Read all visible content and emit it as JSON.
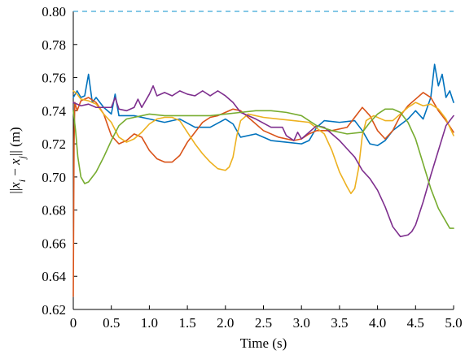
{
  "chart_data": {
    "type": "line",
    "xlabel": "Time (s)",
    "ylabel": "||x_i - x_j|| (m)",
    "xlim": [
      0,
      5.0
    ],
    "ylim": [
      0.62,
      0.8
    ],
    "x_ticks": [
      "0",
      "0.5",
      "1.0",
      "1.5",
      "2.0",
      "2.5",
      "3.0",
      "3.5",
      "4.0",
      "4.5",
      "5.0"
    ],
    "y_ticks": [
      "0.62",
      "0.64",
      "0.66",
      "0.68",
      "0.70",
      "0.72",
      "0.74",
      "0.76",
      "0.78",
      "0.80"
    ],
    "reference_line": {
      "y": 0.8,
      "style": "dashed",
      "color": "#3ca6d8"
    },
    "grid": false,
    "series": [
      {
        "color": "#0072bd",
        "points": [
          [
            0.0,
            0.748
          ],
          [
            0.05,
            0.752
          ],
          [
            0.1,
            0.748
          ],
          [
            0.15,
            0.749
          ],
          [
            0.2,
            0.762
          ],
          [
            0.25,
            0.745
          ],
          [
            0.3,
            0.748
          ],
          [
            0.4,
            0.742
          ],
          [
            0.5,
            0.738
          ],
          [
            0.55,
            0.75
          ],
          [
            0.6,
            0.737
          ],
          [
            0.8,
            0.737
          ],
          [
            1.0,
            0.735
          ],
          [
            1.2,
            0.733
          ],
          [
            1.4,
            0.735
          ],
          [
            1.6,
            0.73
          ],
          [
            1.8,
            0.73
          ],
          [
            2.0,
            0.735
          ],
          [
            2.1,
            0.732
          ],
          [
            2.2,
            0.724
          ],
          [
            2.4,
            0.726
          ],
          [
            2.6,
            0.722
          ],
          [
            2.8,
            0.721
          ],
          [
            3.0,
            0.72
          ],
          [
            3.1,
            0.722
          ],
          [
            3.2,
            0.73
          ],
          [
            3.3,
            0.734
          ],
          [
            3.5,
            0.733
          ],
          [
            3.7,
            0.734
          ],
          [
            3.8,
            0.728
          ],
          [
            3.9,
            0.72
          ],
          [
            4.0,
            0.719
          ],
          [
            4.1,
            0.722
          ],
          [
            4.2,
            0.728
          ],
          [
            4.4,
            0.735
          ],
          [
            4.5,
            0.74
          ],
          [
            4.6,
            0.735
          ],
          [
            4.7,
            0.748
          ],
          [
            4.75,
            0.768
          ],
          [
            4.8,
            0.755
          ],
          [
            4.85,
            0.762
          ],
          [
            4.9,
            0.748
          ],
          [
            4.95,
            0.752
          ],
          [
            5.0,
            0.745
          ]
        ]
      },
      {
        "color": "#d95319",
        "points": [
          [
            0.0,
            0.628
          ],
          [
            0.01,
            0.72
          ],
          [
            0.02,
            0.745
          ],
          [
            0.05,
            0.74
          ],
          [
            0.1,
            0.746
          ],
          [
            0.2,
            0.748
          ],
          [
            0.3,
            0.745
          ],
          [
            0.4,
            0.738
          ],
          [
            0.5,
            0.725
          ],
          [
            0.6,
            0.72
          ],
          [
            0.7,
            0.722
          ],
          [
            0.8,
            0.726
          ],
          [
            0.9,
            0.724
          ],
          [
            1.0,
            0.716
          ],
          [
            1.1,
            0.711
          ],
          [
            1.2,
            0.709
          ],
          [
            1.3,
            0.709
          ],
          [
            1.4,
            0.713
          ],
          [
            1.5,
            0.721
          ],
          [
            1.6,
            0.727
          ],
          [
            1.7,
            0.733
          ],
          [
            1.8,
            0.736
          ],
          [
            1.9,
            0.737
          ],
          [
            2.0,
            0.739
          ],
          [
            2.1,
            0.741
          ],
          [
            2.2,
            0.74
          ],
          [
            2.3,
            0.736
          ],
          [
            2.5,
            0.728
          ],
          [
            2.7,
            0.724
          ],
          [
            2.9,
            0.722
          ],
          [
            3.0,
            0.723
          ],
          [
            3.1,
            0.726
          ],
          [
            3.2,
            0.728
          ],
          [
            3.4,
            0.728
          ],
          [
            3.6,
            0.73
          ],
          [
            3.7,
            0.736
          ],
          [
            3.8,
            0.742
          ],
          [
            3.9,
            0.737
          ],
          [
            4.0,
            0.728
          ],
          [
            4.1,
            0.723
          ],
          [
            4.2,
            0.728
          ],
          [
            4.3,
            0.737
          ],
          [
            4.4,
            0.743
          ],
          [
            4.5,
            0.747
          ],
          [
            4.6,
            0.751
          ],
          [
            4.7,
            0.748
          ],
          [
            4.8,
            0.74
          ],
          [
            4.9,
            0.734
          ],
          [
            5.0,
            0.727
          ]
        ]
      },
      {
        "color": "#edb120",
        "points": [
          [
            0.0,
            0.752
          ],
          [
            0.05,
            0.75
          ],
          [
            0.1,
            0.747
          ],
          [
            0.2,
            0.746
          ],
          [
            0.3,
            0.744
          ],
          [
            0.4,
            0.738
          ],
          [
            0.5,
            0.733
          ],
          [
            0.6,
            0.724
          ],
          [
            0.7,
            0.721
          ],
          [
            0.8,
            0.723
          ],
          [
            0.9,
            0.727
          ],
          [
            1.0,
            0.732
          ],
          [
            1.1,
            0.735
          ],
          [
            1.2,
            0.736
          ],
          [
            1.3,
            0.736
          ],
          [
            1.4,
            0.734
          ],
          [
            1.5,
            0.727
          ],
          [
            1.6,
            0.72
          ],
          [
            1.7,
            0.714
          ],
          [
            1.8,
            0.709
          ],
          [
            1.9,
            0.705
          ],
          [
            2.0,
            0.704
          ],
          [
            2.05,
            0.706
          ],
          [
            2.1,
            0.712
          ],
          [
            2.15,
            0.725
          ],
          [
            2.2,
            0.734
          ],
          [
            2.3,
            0.738
          ],
          [
            2.5,
            0.736
          ],
          [
            2.7,
            0.735
          ],
          [
            2.9,
            0.734
          ],
          [
            3.1,
            0.733
          ],
          [
            3.3,
            0.726
          ],
          [
            3.4,
            0.716
          ],
          [
            3.5,
            0.703
          ],
          [
            3.6,
            0.694
          ],
          [
            3.65,
            0.69
          ],
          [
            3.7,
            0.693
          ],
          [
            3.75,
            0.705
          ],
          [
            3.8,
            0.725
          ],
          [
            3.85,
            0.734
          ],
          [
            3.95,
            0.737
          ],
          [
            4.1,
            0.734
          ],
          [
            4.2,
            0.734
          ],
          [
            4.3,
            0.738
          ],
          [
            4.4,
            0.742
          ],
          [
            4.5,
            0.745
          ],
          [
            4.6,
            0.743
          ],
          [
            4.7,
            0.744
          ],
          [
            4.8,
            0.741
          ],
          [
            4.9,
            0.735
          ],
          [
            5.0,
            0.725
          ]
        ]
      },
      {
        "color": "#7e2f8e",
        "points": [
          [
            0.0,
            0.745
          ],
          [
            0.1,
            0.743
          ],
          [
            0.2,
            0.744
          ],
          [
            0.3,
            0.742
          ],
          [
            0.5,
            0.742
          ],
          [
            0.55,
            0.748
          ],
          [
            0.6,
            0.741
          ],
          [
            0.7,
            0.74
          ],
          [
            0.8,
            0.742
          ],
          [
            0.85,
            0.747
          ],
          [
            0.9,
            0.742
          ],
          [
            1.0,
            0.75
          ],
          [
            1.05,
            0.755
          ],
          [
            1.1,
            0.749
          ],
          [
            1.2,
            0.751
          ],
          [
            1.3,
            0.749
          ],
          [
            1.4,
            0.752
          ],
          [
            1.5,
            0.75
          ],
          [
            1.6,
            0.749
          ],
          [
            1.7,
            0.752
          ],
          [
            1.8,
            0.749
          ],
          [
            1.9,
            0.752
          ],
          [
            2.0,
            0.749
          ],
          [
            2.1,
            0.745
          ],
          [
            2.2,
            0.739
          ],
          [
            2.4,
            0.735
          ],
          [
            2.6,
            0.73
          ],
          [
            2.75,
            0.73
          ],
          [
            2.8,
            0.725
          ],
          [
            2.9,
            0.722
          ],
          [
            2.95,
            0.727
          ],
          [
            3.0,
            0.723
          ],
          [
            3.1,
            0.727
          ],
          [
            3.2,
            0.731
          ],
          [
            3.3,
            0.73
          ],
          [
            3.4,
            0.726
          ],
          [
            3.5,
            0.722
          ],
          [
            3.6,
            0.717
          ],
          [
            3.7,
            0.712
          ],
          [
            3.8,
            0.704
          ],
          [
            3.9,
            0.699
          ],
          [
            4.0,
            0.692
          ],
          [
            4.1,
            0.682
          ],
          [
            4.2,
            0.67
          ],
          [
            4.3,
            0.664
          ],
          [
            4.4,
            0.665
          ],
          [
            4.45,
            0.667
          ],
          [
            4.5,
            0.671
          ],
          [
            4.6,
            0.685
          ],
          [
            4.7,
            0.701
          ],
          [
            4.8,
            0.716
          ],
          [
            4.9,
            0.731
          ],
          [
            5.0,
            0.737
          ]
        ]
      },
      {
        "color": "#77ac30",
        "points": [
          [
            0.0,
            0.74
          ],
          [
            0.03,
            0.728
          ],
          [
            0.06,
            0.712
          ],
          [
            0.1,
            0.7
          ],
          [
            0.15,
            0.696
          ],
          [
            0.2,
            0.697
          ],
          [
            0.3,
            0.703
          ],
          [
            0.4,
            0.712
          ],
          [
            0.5,
            0.722
          ],
          [
            0.6,
            0.731
          ],
          [
            0.7,
            0.735
          ],
          [
            0.8,
            0.736
          ],
          [
            1.0,
            0.738
          ],
          [
            1.2,
            0.737
          ],
          [
            1.4,
            0.737
          ],
          [
            1.6,
            0.737
          ],
          [
            1.8,
            0.737
          ],
          [
            2.0,
            0.738
          ],
          [
            2.2,
            0.739
          ],
          [
            2.4,
            0.74
          ],
          [
            2.6,
            0.74
          ],
          [
            2.8,
            0.739
          ],
          [
            3.0,
            0.737
          ],
          [
            3.2,
            0.731
          ],
          [
            3.4,
            0.728
          ],
          [
            3.6,
            0.726
          ],
          [
            3.8,
            0.727
          ],
          [
            3.9,
            0.733
          ],
          [
            4.0,
            0.738
          ],
          [
            4.1,
            0.741
          ],
          [
            4.2,
            0.741
          ],
          [
            4.3,
            0.739
          ],
          [
            4.4,
            0.733
          ],
          [
            4.5,
            0.723
          ],
          [
            4.6,
            0.708
          ],
          [
            4.7,
            0.693
          ],
          [
            4.8,
            0.681
          ],
          [
            4.9,
            0.673
          ],
          [
            4.95,
            0.669
          ],
          [
            5.0,
            0.669
          ]
        ]
      }
    ]
  }
}
